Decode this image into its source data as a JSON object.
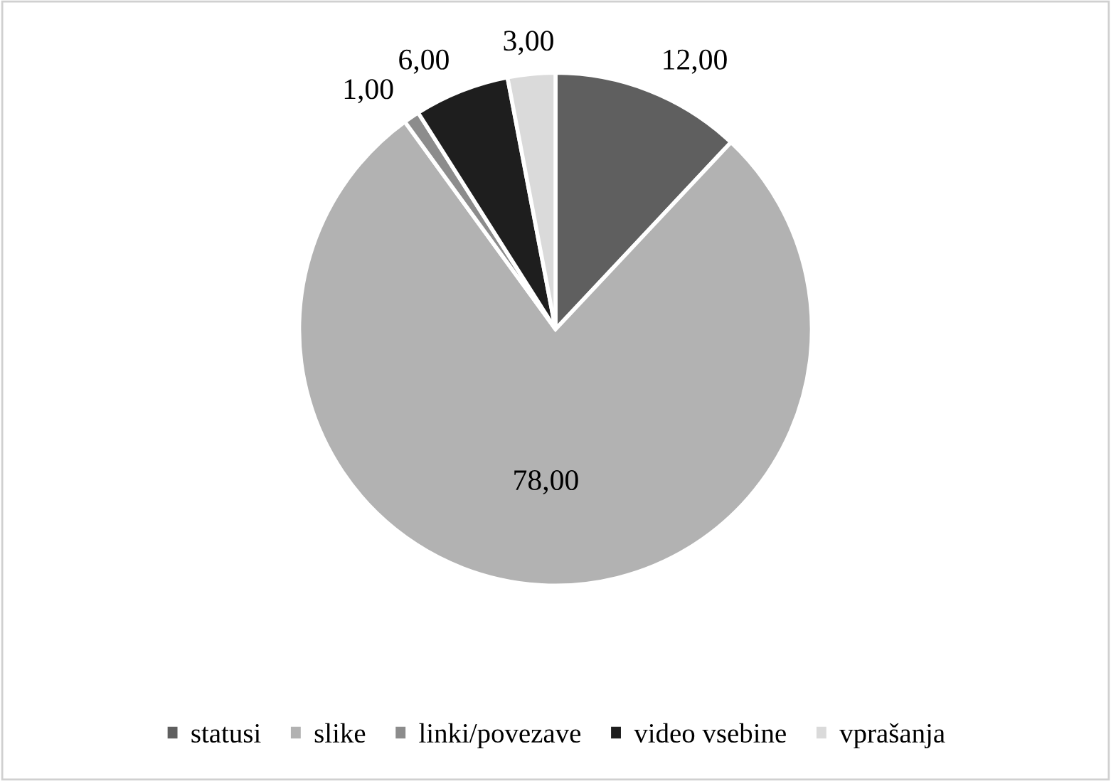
{
  "chart_data": {
    "type": "pie",
    "categories": [
      "statusi",
      "slike",
      "linki/povezave",
      "video vsebine",
      "vprašanja"
    ],
    "values": [
      12,
      78,
      1,
      6,
      3
    ],
    "value_labels": [
      "12,00",
      "78,00",
      "1,00",
      "6,00",
      "3,00"
    ],
    "colors": [
      "#5f5f5f",
      "#b2b2b2",
      "#8c8c8c",
      "#1e1e1e",
      "#dadada"
    ],
    "legend": "bottom"
  }
}
